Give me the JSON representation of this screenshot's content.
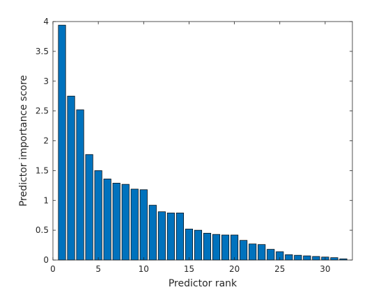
{
  "chart_data": {
    "type": "bar",
    "xlabel": "Predictor rank",
    "ylabel": "Predictor importance score",
    "xlim": [
      0,
      33
    ],
    "ylim": [
      0,
      4
    ],
    "grid": false,
    "bar_color": "#0072BD",
    "bar_edge_color": "#000000",
    "x_ticks": [
      0,
      5,
      10,
      15,
      20,
      25,
      30
    ],
    "x_tick_labels": [
      "0",
      "5",
      "10",
      "15",
      "20",
      "25",
      "30"
    ],
    "y_ticks": [
      0,
      0.5,
      1,
      1.5,
      2,
      2.5,
      3,
      3.5,
      4
    ],
    "y_tick_labels": [
      "0",
      "0.5",
      "1",
      "1.5",
      "2",
      "2.5",
      "3",
      "3.5",
      "4"
    ],
    "x": [
      1,
      2,
      3,
      4,
      5,
      6,
      7,
      8,
      9,
      10,
      11,
      12,
      13,
      14,
      15,
      16,
      17,
      18,
      19,
      20,
      21,
      22,
      23,
      24,
      25,
      26,
      27,
      28,
      29,
      30,
      31,
      32
    ],
    "values": [
      3.94,
      2.75,
      2.52,
      1.77,
      1.5,
      1.36,
      1.29,
      1.27,
      1.19,
      1.18,
      0.92,
      0.81,
      0.79,
      0.79,
      0.52,
      0.5,
      0.45,
      0.43,
      0.42,
      0.42,
      0.33,
      0.27,
      0.26,
      0.18,
      0.14,
      0.09,
      0.08,
      0.07,
      0.06,
      0.05,
      0.04,
      0.02
    ]
  }
}
